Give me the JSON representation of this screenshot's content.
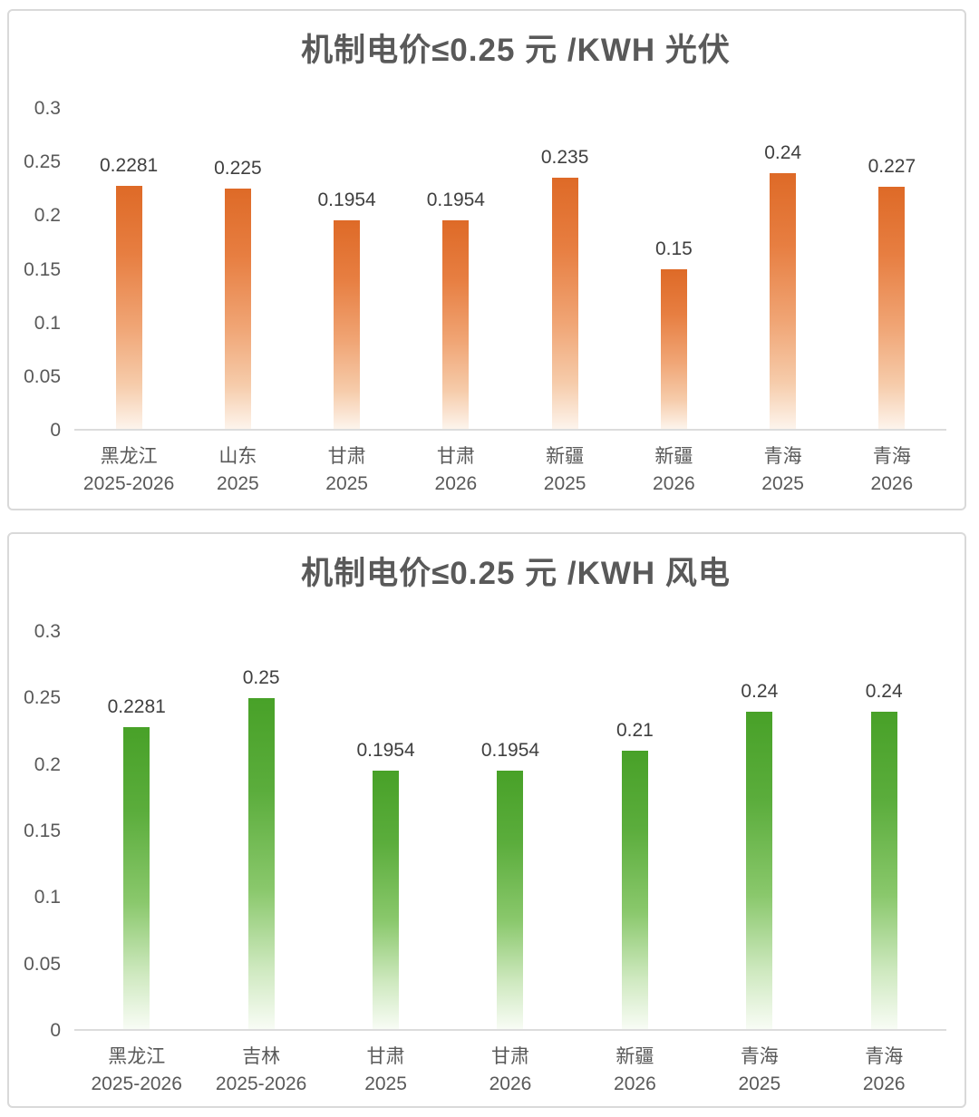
{
  "page": {
    "background": "#ffffff",
    "panel_border": "#d9d9d9",
    "axis_line_color": "#dcdcdc",
    "title_color": "#595959",
    "label_color": "#3f3f3f"
  },
  "chart_data": [
    {
      "type": "bar",
      "title": "机制电价≤0.25 元 /KWH 光伏",
      "theme": "orange",
      "bar_color": "#DE6A27",
      "bar_fade_to": "#FFFFFF",
      "grid": false,
      "legend": "none",
      "ylim": [
        0,
        0.3
      ],
      "yticks": [
        {
          "value": 0.3,
          "label": "0.3"
        },
        {
          "value": 0.25,
          "label": "0.25"
        },
        {
          "value": 0.2,
          "label": "0.2"
        },
        {
          "value": 0.15,
          "label": "0.15"
        },
        {
          "value": 0.1,
          "label": "0.1"
        },
        {
          "value": 0.05,
          "label": "0.05"
        },
        {
          "value": 0,
          "label": "0"
        }
      ],
      "points": [
        {
          "region": "黑龙江",
          "period": "2025-2026",
          "value": 0.2281,
          "label": "0.2281"
        },
        {
          "region": "山东",
          "period": "2025",
          "value": 0.225,
          "label": "0.225"
        },
        {
          "region": "甘肃",
          "period": "2025",
          "value": 0.1954,
          "label": "0.1954"
        },
        {
          "region": "甘肃",
          "period": "2026",
          "value": 0.1954,
          "label": "0.1954"
        },
        {
          "region": "新疆",
          "period": "2025",
          "value": 0.235,
          "label": "0.235"
        },
        {
          "region": "新疆",
          "period": "2026",
          "value": 0.15,
          "label": "0.15"
        },
        {
          "region": "青海",
          "period": "2025",
          "value": 0.24,
          "label": "0.24"
        },
        {
          "region": "青海",
          "period": "2026",
          "value": 0.227,
          "label": "0.227"
        }
      ]
    },
    {
      "type": "bar",
      "title": "机制电价≤0.25 元 /KWH 风电",
      "theme": "green",
      "bar_color": "#48A128",
      "bar_fade_to": "#FFFFFF",
      "grid": false,
      "legend": "none",
      "ylim": [
        0,
        0.3
      ],
      "yticks": [
        {
          "value": 0.3,
          "label": "0.3"
        },
        {
          "value": 0.25,
          "label": "0.25"
        },
        {
          "value": 0.2,
          "label": "0.2"
        },
        {
          "value": 0.15,
          "label": "0.15"
        },
        {
          "value": 0.1,
          "label": "0.1"
        },
        {
          "value": 0.05,
          "label": "0.05"
        },
        {
          "value": 0,
          "label": "0"
        }
      ],
      "points": [
        {
          "region": "黑龙江",
          "period": "2025-2026",
          "value": 0.2281,
          "label": "0.2281"
        },
        {
          "region": "吉林",
          "period": "2025-2026",
          "value": 0.25,
          "label": "0.25"
        },
        {
          "region": "甘肃",
          "period": "2025",
          "value": 0.1954,
          "label": "0.1954"
        },
        {
          "region": "甘肃",
          "period": "2026",
          "value": 0.1954,
          "label": "0.1954"
        },
        {
          "region": "新疆",
          "period": "2026",
          "value": 0.21,
          "label": "0.21"
        },
        {
          "region": "青海",
          "period": "2025",
          "value": 0.24,
          "label": "0.24"
        },
        {
          "region": "青海",
          "period": "2026",
          "value": 0.24,
          "label": "0.24"
        }
      ]
    }
  ]
}
